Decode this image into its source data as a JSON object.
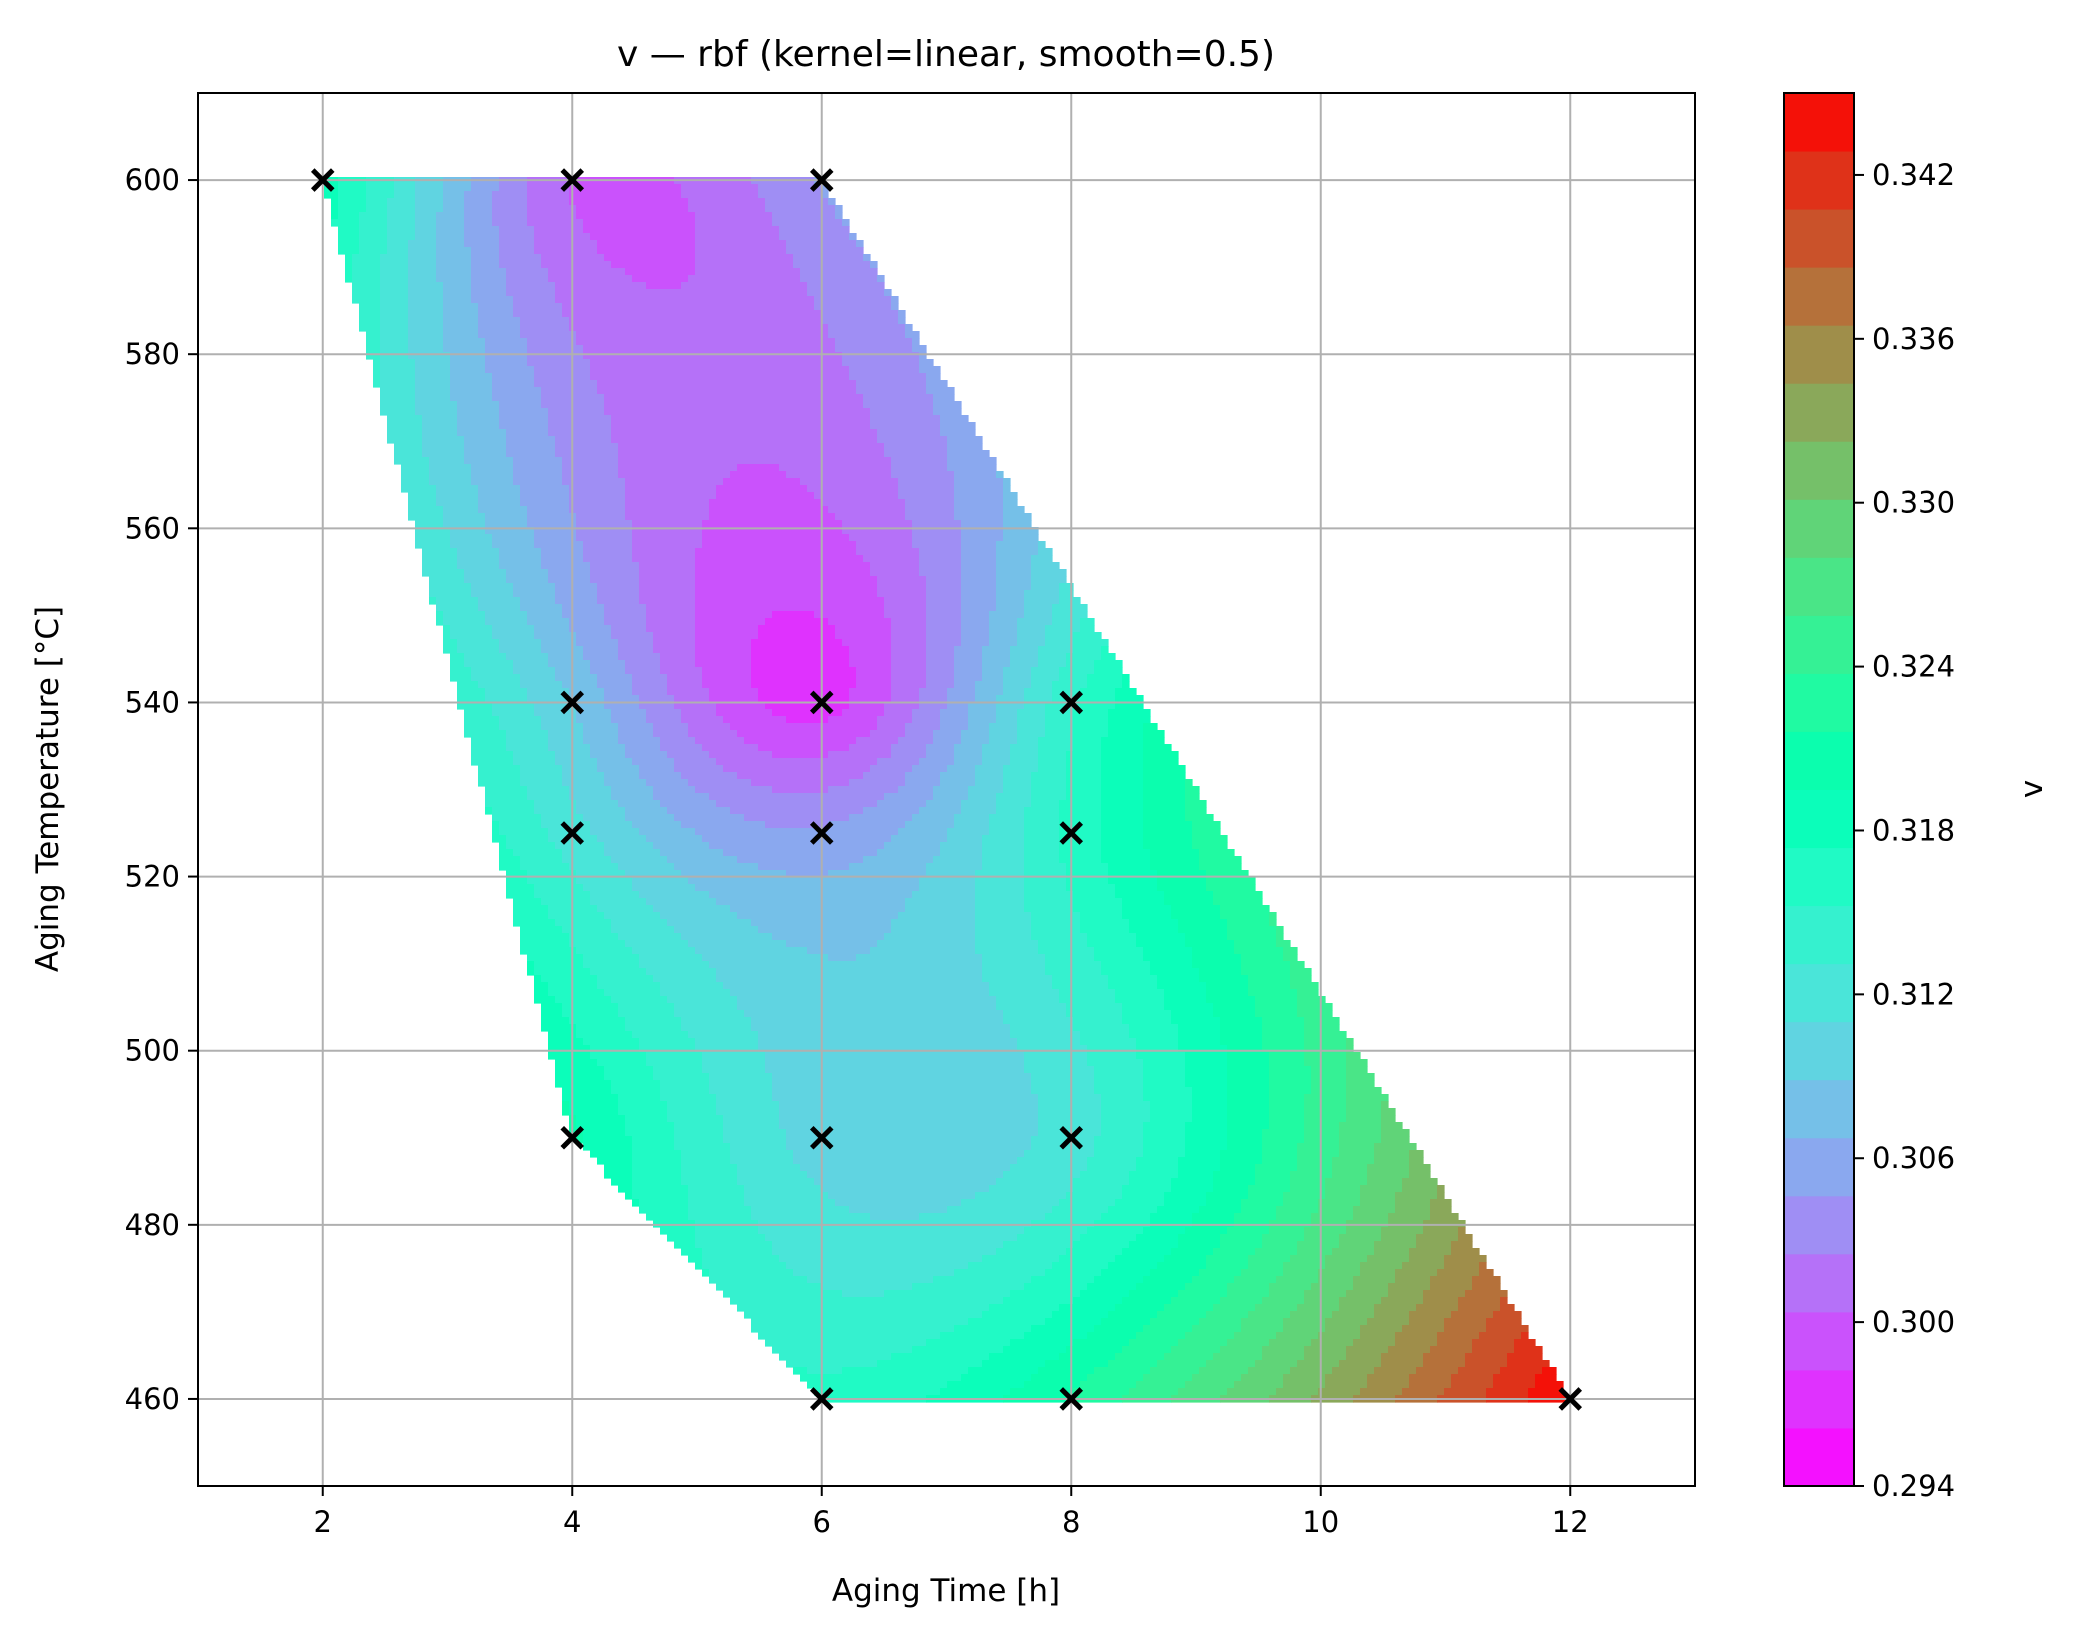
{
  "chart_data": {
    "type": "heatmap",
    "subtype": "filled-contour",
    "title": "v — rbf (kernel=linear, smooth=0.5)",
    "xlabel": "Aging Time [h]",
    "ylabel": "Aging Temperature [°C]",
    "colorbar_label": "v",
    "xlim": [
      1,
      13
    ],
    "ylim": [
      450,
      610
    ],
    "xticks": [
      2,
      4,
      6,
      8,
      10,
      12
    ],
    "yticks": [
      460,
      480,
      500,
      520,
      540,
      560,
      580,
      600
    ],
    "colorbar_range": [
      0.294,
      0.345
    ],
    "colorbar_ticks": [
      "0.294",
      "0.300",
      "0.306",
      "0.312",
      "0.318",
      "0.324",
      "0.330",
      "0.336",
      "0.342"
    ],
    "colorbar_levels": 24,
    "colormap": "rainbow",
    "grid": true,
    "region_polygon": [
      [
        2,
        600
      ],
      [
        6,
        600
      ],
      [
        12,
        460
      ],
      [
        6,
        460
      ],
      [
        4,
        490
      ]
    ],
    "samples": [
      {
        "x": 2,
        "y": 600,
        "v": 0.319
      },
      {
        "x": 4,
        "y": 600,
        "v": 0.3
      },
      {
        "x": 6,
        "y": 600,
        "v": 0.305
      },
      {
        "x": 4,
        "y": 540,
        "v": 0.309
      },
      {
        "x": 6,
        "y": 540,
        "v": 0.297
      },
      {
        "x": 8,
        "y": 540,
        "v": 0.315
      },
      {
        "x": 4,
        "y": 525,
        "v": 0.312
      },
      {
        "x": 6,
        "y": 525,
        "v": 0.305
      },
      {
        "x": 8,
        "y": 525,
        "v": 0.316
      },
      {
        "x": 4,
        "y": 490,
        "v": 0.32
      },
      {
        "x": 6,
        "y": 490,
        "v": 0.31
      },
      {
        "x": 8,
        "y": 490,
        "v": 0.312
      },
      {
        "x": 6,
        "y": 460,
        "v": 0.316
      },
      {
        "x": 8,
        "y": 460,
        "v": 0.322
      },
      {
        "x": 12,
        "y": 460,
        "v": 0.345
      }
    ]
  }
}
